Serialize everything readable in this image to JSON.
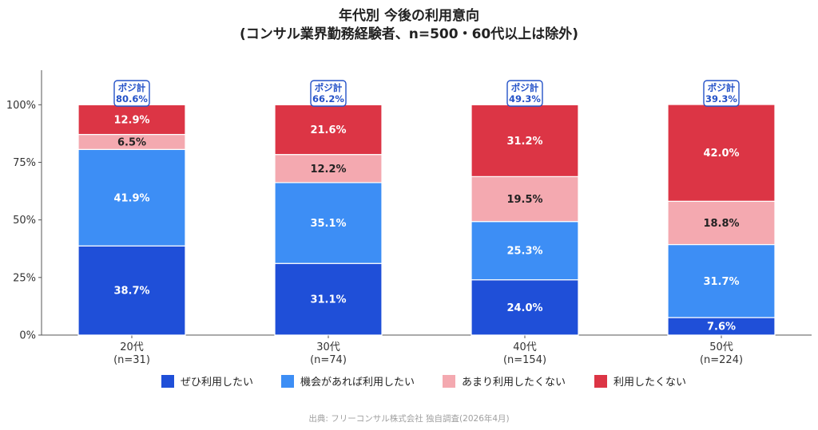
{
  "chart_data": {
    "type": "bar",
    "stacked": true,
    "title": [
      "年代別 今後の利用意向",
      "(コンサル業界勤務経験者、n=500・60代以上は除外)"
    ],
    "categories": [
      {
        "label": "20代",
        "n": "(n=31)"
      },
      {
        "label": "30代",
        "n": "(n=74)"
      },
      {
        "label": "40代",
        "n": "(n=154)"
      },
      {
        "label": "50代",
        "n": "(n=224)"
      }
    ],
    "yticks": [
      "0%",
      "25%",
      "50%",
      "75%",
      "100%"
    ],
    "ylim": [
      0,
      115
    ],
    "grid": false,
    "legend_position": "bottom",
    "series": [
      {
        "name": "ぜひ利用したい",
        "color": "#1f4fd8",
        "label_color": "#ffffff",
        "values": [
          38.7,
          31.1,
          24.0,
          7.6
        ]
      },
      {
        "name": "機会があれば利用したい",
        "color": "#3d8ef5",
        "label_color": "#ffffff",
        "values": [
          41.9,
          35.1,
          25.3,
          31.7
        ]
      },
      {
        "name": "あまり利用したくない",
        "color": "#f4a9b0",
        "label_color": "#222222",
        "values": [
          6.5,
          12.2,
          19.5,
          18.8
        ]
      },
      {
        "name": "利用したくない",
        "color": "#dc3545",
        "label_color": "#ffffff",
        "values": [
          12.9,
          21.6,
          31.2,
          42.0
        ]
      }
    ],
    "posi_label": "ポジ計",
    "posi_values": [
      "80.6%",
      "66.2%",
      "49.3%",
      "39.3%"
    ],
    "source": "出典: フリーコンサル株式会社 独自調査(2026年4月)"
  }
}
